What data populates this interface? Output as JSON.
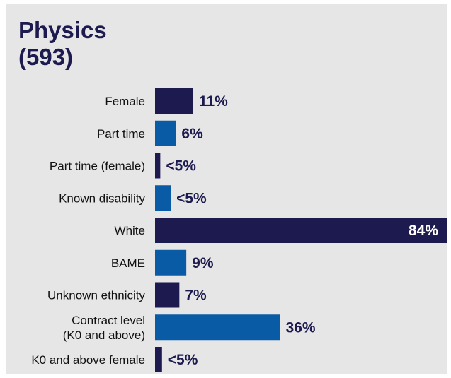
{
  "title": "Physics",
  "subtitle": "(593)",
  "colors": {
    "dark": "#1c1a4e",
    "blue": "#0a5ba6",
    "text": "#111111",
    "inside_label": "#ffffff"
  },
  "chart_data": {
    "type": "bar",
    "orientation": "horizontal",
    "title": "Physics (593)",
    "categories": [
      "Female",
      "Part time",
      "Part time (female)",
      "Known disability",
      "White",
      "BAME",
      "Unknown ethnicity",
      "Contract level (K0 and above)",
      "K0 and above female"
    ],
    "category_lines": [
      [
        "Female"
      ],
      [
        "Part time"
      ],
      [
        "Part time (female)"
      ],
      [
        "Known disability"
      ],
      [
        "White"
      ],
      [
        "BAME"
      ],
      [
        "Unknown ethnicity"
      ],
      [
        "Contract level",
        "(K0 and above)"
      ],
      [
        "K0 and above female"
      ]
    ],
    "values": [
      11,
      6,
      1.5,
      4.5,
      84,
      9,
      7,
      36,
      2
    ],
    "labels": [
      "11%",
      "6%",
      "<5%",
      "<5%",
      "84%",
      "9%",
      "7%",
      "36%",
      "<5%"
    ],
    "bar_colors": [
      "dark",
      "blue",
      "dark",
      "blue",
      "dark",
      "blue",
      "dark",
      "blue",
      "dark"
    ],
    "xlim": [
      0,
      84
    ]
  }
}
